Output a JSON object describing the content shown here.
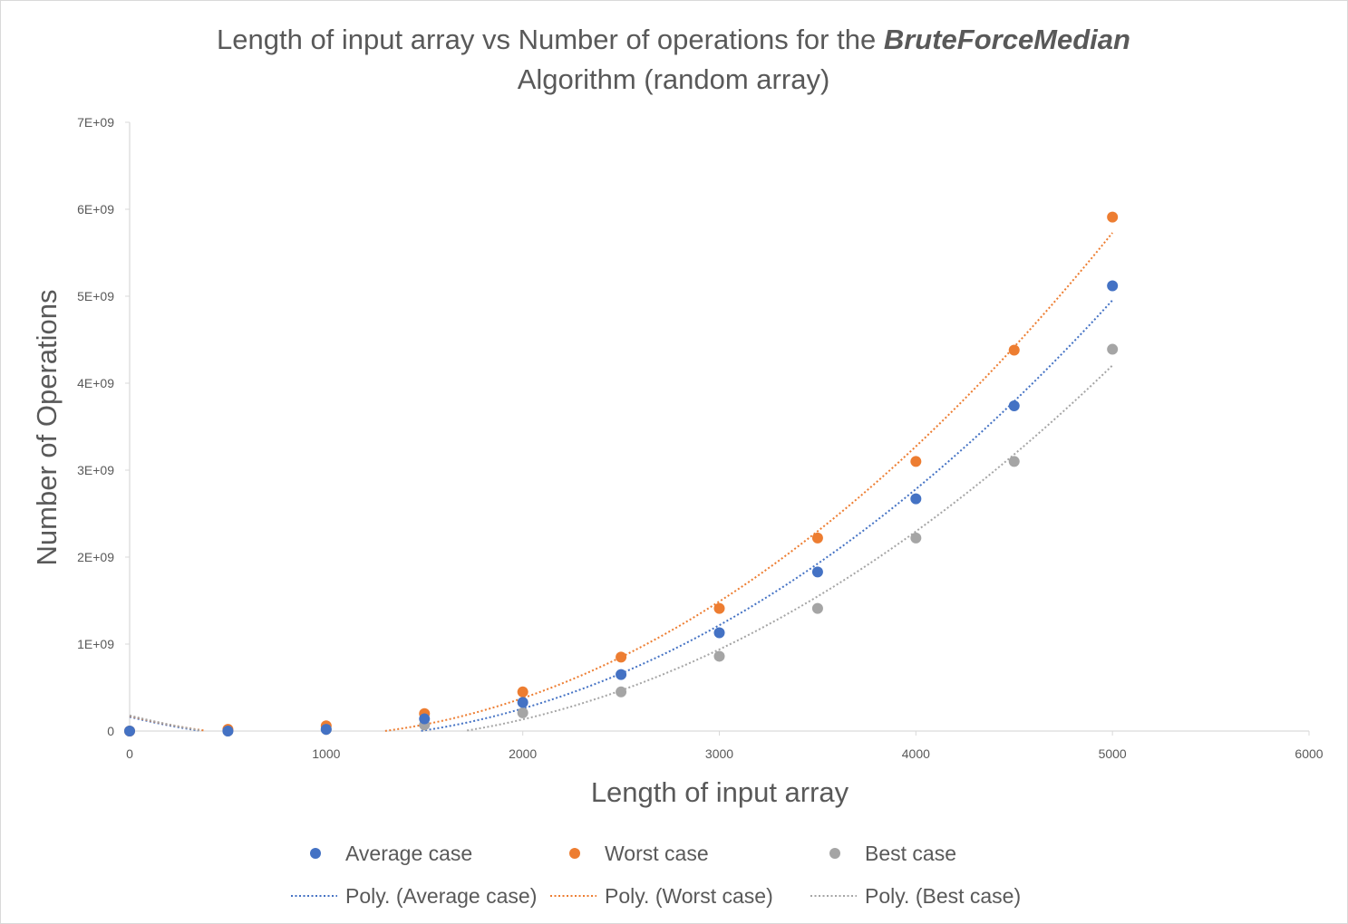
{
  "chart_data": {
    "type": "scatter",
    "title_parts": [
      "Length of input array vs Number of operations for the ",
      "BruteForceMedian"
    ],
    "title_line2": "Algorithm (random array)",
    "xlabel": "Length of input array",
    "ylabel": "Number of Operations",
    "xlim": [
      0,
      6000
    ],
    "ylim": [
      0,
      7000000000
    ],
    "x_ticks": [
      0,
      1000,
      2000,
      3000,
      4000,
      5000,
      6000
    ],
    "x_tick_labels": [
      "0",
      "1000",
      "2000",
      "3000",
      "4000",
      "5000",
      "6000"
    ],
    "y_ticks": [
      0,
      1000000000,
      2000000000,
      3000000000,
      4000000000,
      5000000000,
      6000000000,
      7000000000
    ],
    "y_tick_labels": [
      "0",
      "1E+09",
      "2E+09",
      "3E+09",
      "4E+09",
      "5E+09",
      "6E+09",
      "7E+09"
    ],
    "grid": false,
    "legend_position": "bottom",
    "x": [
      0,
      500,
      1000,
      1500,
      2000,
      2500,
      3000,
      3500,
      4000,
      4500,
      5000
    ],
    "series": [
      {
        "name": "Average case",
        "color": "#4472c4",
        "values": [
          0,
          0,
          20000000,
          140000000,
          330000000,
          650000000,
          1130000000,
          1830000000,
          2670000000,
          3740000000,
          5120000000
        ]
      },
      {
        "name": "Worst case",
        "color": "#ed7d31",
        "values": [
          0,
          20000000,
          60000000,
          200000000,
          450000000,
          850000000,
          1410000000,
          2220000000,
          3100000000,
          4380000000,
          5910000000
        ]
      },
      {
        "name": "Best case",
        "color": "#a5a5a5",
        "values": [
          0,
          0,
          20000000,
          70000000,
          210000000,
          450000000,
          860000000,
          1410000000,
          2220000000,
          3100000000,
          4390000000
        ]
      }
    ],
    "trendlines": [
      {
        "name": "Poly. (Average case)",
        "color": "#4472c4",
        "type": "polynomial",
        "order": 2
      },
      {
        "name": "Poly. (Worst case)",
        "color": "#ed7d31",
        "type": "polynomial",
        "order": 2
      },
      {
        "name": "Poly. (Best case)",
        "color": "#a5a5a5",
        "type": "polynomial",
        "order": 2
      }
    ]
  }
}
